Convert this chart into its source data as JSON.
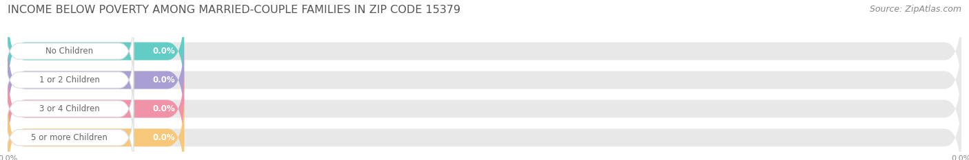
{
  "title": "INCOME BELOW POVERTY AMONG MARRIED-COUPLE FAMILIES IN ZIP CODE 15379",
  "source": "Source: ZipAtlas.com",
  "categories": [
    "No Children",
    "1 or 2 Children",
    "3 or 4 Children",
    "5 or more Children"
  ],
  "values": [
    0.0,
    0.0,
    0.0,
    0.0
  ],
  "bar_colors": [
    "#62cdc4",
    "#a99fd4",
    "#f093a8",
    "#f8c87a"
  ],
  "bar_bg_color": "#e8e8e8",
  "background_color": "#ffffff",
  "title_fontsize": 11.5,
  "label_fontsize": 8.5,
  "value_fontsize": 8.5,
  "source_fontsize": 9
}
